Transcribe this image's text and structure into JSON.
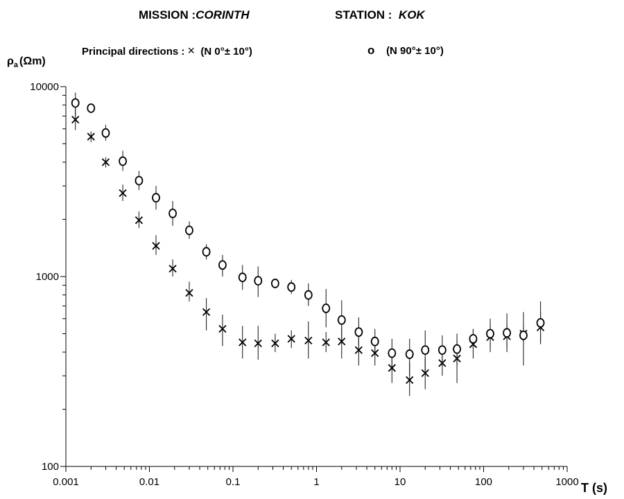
{
  "header": {
    "mission_label": "MISSION :",
    "mission_value": "CORINTH",
    "station_label": "STATION :",
    "station_value": "KOK",
    "principal_label": "Principal directions :",
    "dir1_label": "(N 0°± 10°)",
    "dir2_label": "(N 90°± 10°)",
    "x_symbol": "×",
    "o_symbol": "o"
  },
  "chart_data": {
    "type": "scatter",
    "title": "MISSION :CORINTH STATION : KOK",
    "ylabel_main": "ρ",
    "ylabel_sub": "a",
    "ylabel_unit": "(Ωm)",
    "xlabel": "T (s)",
    "x_scale": "log",
    "y_scale": "log",
    "xlim": [
      0.001,
      1000
    ],
    "ylim": [
      100,
      10000
    ],
    "x_ticks": [
      0.001,
      0.01,
      0.1,
      1,
      10,
      100,
      1000
    ],
    "x_tick_labels": [
      "0.001",
      "0.01",
      "0.1",
      "1",
      "10",
      "100",
      "1000"
    ],
    "y_ticks": [
      100,
      1000,
      10000
    ],
    "y_tick_labels": [
      "100",
      "1000",
      "10000"
    ],
    "grid": false,
    "legend": "top",
    "series": [
      {
        "name": "(N 0°± 10°)",
        "marker": "x",
        "points": [
          {
            "x": 0.0013,
            "y": 6700,
            "lo": 5900,
            "hi": 7600
          },
          {
            "x": 0.002,
            "y": 5450,
            "lo": 5100,
            "hi": 5800
          },
          {
            "x": 0.003,
            "y": 4000,
            "lo": 3750,
            "hi": 4250
          },
          {
            "x": 0.0048,
            "y": 2750,
            "lo": 2500,
            "hi": 3050
          },
          {
            "x": 0.0075,
            "y": 1980,
            "lo": 1800,
            "hi": 2200
          },
          {
            "x": 0.012,
            "y": 1450,
            "lo": 1300,
            "hi": 1650
          },
          {
            "x": 0.019,
            "y": 1100,
            "lo": 1000,
            "hi": 1230
          },
          {
            "x": 0.03,
            "y": 820,
            "lo": 740,
            "hi": 940
          },
          {
            "x": 0.048,
            "y": 650,
            "lo": 520,
            "hi": 770
          },
          {
            "x": 0.075,
            "y": 530,
            "lo": 430,
            "hi": 630
          },
          {
            "x": 0.13,
            "y": 450,
            "lo": 370,
            "hi": 550
          },
          {
            "x": 0.2,
            "y": 445,
            "lo": 365,
            "hi": 550
          },
          {
            "x": 0.32,
            "y": 445,
            "lo": 400,
            "hi": 500
          },
          {
            "x": 0.5,
            "y": 470,
            "lo": 420,
            "hi": 520
          },
          {
            "x": 0.8,
            "y": 460,
            "lo": 370,
            "hi": 580
          },
          {
            "x": 1.3,
            "y": 450,
            "lo": 400,
            "hi": 510
          },
          {
            "x": 2.0,
            "y": 455,
            "lo": 370,
            "hi": 540
          },
          {
            "x": 3.2,
            "y": 410,
            "lo": 340,
            "hi": 490
          },
          {
            "x": 5.0,
            "y": 395,
            "lo": 340,
            "hi": 450
          },
          {
            "x": 8.0,
            "y": 330,
            "lo": 275,
            "hi": 390
          },
          {
            "x": 13,
            "y": 285,
            "lo": 235,
            "hi": 350
          },
          {
            "x": 20,
            "y": 310,
            "lo": 255,
            "hi": 375
          },
          {
            "x": 32,
            "y": 350,
            "lo": 300,
            "hi": 400
          },
          {
            "x": 48,
            "y": 370,
            "lo": 275,
            "hi": 460
          },
          {
            "x": 75,
            "y": 440,
            "lo": 370,
            "hi": 520
          },
          {
            "x": 120,
            "y": 480,
            "lo": 400,
            "hi": 560
          },
          {
            "x": 190,
            "y": 485,
            "lo": 420,
            "hi": 560
          },
          {
            "x": 300,
            "y": 500,
            "lo": 450,
            "hi": 560
          },
          {
            "x": 480,
            "y": 540,
            "lo": 450,
            "hi": 650
          }
        ]
      },
      {
        "name": "(N 90°± 10°)",
        "marker": "o",
        "points": [
          {
            "x": 0.0013,
            "y": 8200,
            "lo": 7000,
            "hi": 9300
          },
          {
            "x": 0.002,
            "y": 7700,
            "lo": 7400,
            "hi": 8000
          },
          {
            "x": 0.003,
            "y": 5700,
            "lo": 5200,
            "hi": 6300
          },
          {
            "x": 0.0048,
            "y": 4050,
            "lo": 3600,
            "hi": 4600
          },
          {
            "x": 0.0075,
            "y": 3200,
            "lo": 2850,
            "hi": 3600
          },
          {
            "x": 0.012,
            "y": 2600,
            "lo": 2250,
            "hi": 3000
          },
          {
            "x": 0.019,
            "y": 2150,
            "lo": 1850,
            "hi": 2500
          },
          {
            "x": 0.03,
            "y": 1750,
            "lo": 1580,
            "hi": 1950
          },
          {
            "x": 0.048,
            "y": 1350,
            "lo": 1230,
            "hi": 1480
          },
          {
            "x": 0.075,
            "y": 1150,
            "lo": 1000,
            "hi": 1300
          },
          {
            "x": 0.13,
            "y": 990,
            "lo": 850,
            "hi": 1150
          },
          {
            "x": 0.2,
            "y": 950,
            "lo": 780,
            "hi": 1130
          },
          {
            "x": 0.32,
            "y": 920,
            "lo": 870,
            "hi": 970
          },
          {
            "x": 0.5,
            "y": 880,
            "lo": 810,
            "hi": 960
          },
          {
            "x": 0.8,
            "y": 800,
            "lo": 700,
            "hi": 920
          },
          {
            "x": 1.3,
            "y": 680,
            "lo": 540,
            "hi": 860
          },
          {
            "x": 2.0,
            "y": 590,
            "lo": 460,
            "hi": 750
          },
          {
            "x": 3.2,
            "y": 510,
            "lo": 430,
            "hi": 610
          },
          {
            "x": 5.0,
            "y": 455,
            "lo": 400,
            "hi": 530
          },
          {
            "x": 8.0,
            "y": 395,
            "lo": 330,
            "hi": 470
          },
          {
            "x": 13,
            "y": 390,
            "lo": 300,
            "hi": 470
          },
          {
            "x": 20,
            "y": 410,
            "lo": 310,
            "hi": 520
          },
          {
            "x": 32,
            "y": 410,
            "lo": 340,
            "hi": 490
          },
          {
            "x": 48,
            "y": 415,
            "lo": 340,
            "hi": 500
          },
          {
            "x": 75,
            "y": 470,
            "lo": 420,
            "hi": 530
          },
          {
            "x": 120,
            "y": 500,
            "lo": 420,
            "hi": 600
          },
          {
            "x": 190,
            "y": 505,
            "lo": 400,
            "hi": 640
          },
          {
            "x": 300,
            "y": 490,
            "lo": 340,
            "hi": 650
          },
          {
            "x": 480,
            "y": 570,
            "lo": 440,
            "hi": 740
          }
        ]
      }
    ]
  }
}
